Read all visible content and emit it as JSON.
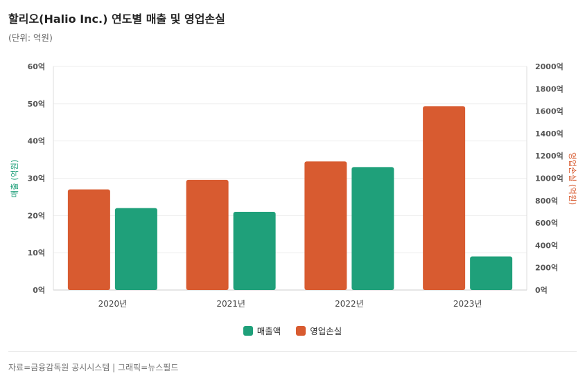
{
  "title": "할리오(Halio Inc.) 연도별 매출 및 영업손실",
  "subtitle": "(단위: 억원)",
  "source": "자료=금융감독원 공시시스템  |  그래픽=뉴스필드",
  "colors": {
    "revenue": "#1fa07a",
    "loss": "#d85b30"
  },
  "chart_data": {
    "type": "bar",
    "categories": [
      "2020년",
      "2021년",
      "2022년",
      "2023년"
    ],
    "series": [
      {
        "name": "영업손실",
        "axis": "right",
        "values": [
          900,
          985,
          1150,
          1645
        ]
      },
      {
        "name": "매출액",
        "axis": "left",
        "values": [
          22,
          21,
          33,
          9
        ]
      }
    ],
    "left_axis": {
      "label": "매출 (억원)",
      "ylim": [
        0,
        60
      ],
      "ticks": [
        "0억",
        "10억",
        "20억",
        "30억",
        "40억",
        "50억",
        "60억"
      ]
    },
    "right_axis": {
      "label": "영업손실 (억원)",
      "ylim": [
        0,
        2000
      ],
      "ticks": [
        "0억",
        "200억",
        "400억",
        "600억",
        "800억",
        "1000억",
        "1200억",
        "1400억",
        "1600억",
        "1800억",
        "2000억"
      ]
    },
    "legend": {
      "position": "bottom",
      "items": [
        "매출액",
        "영업손실"
      ]
    },
    "grid": true
  }
}
